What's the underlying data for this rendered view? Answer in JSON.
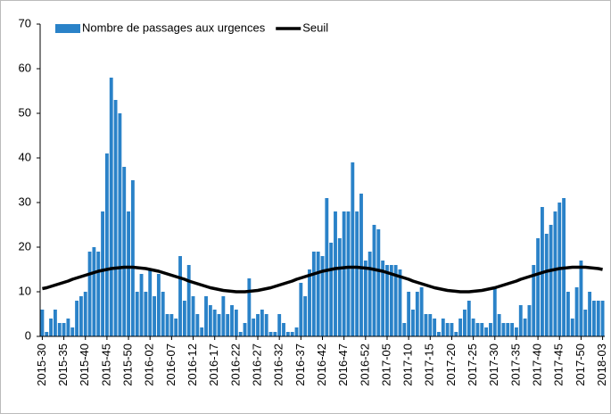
{
  "chart_data": {
    "type": "bar",
    "categories": [
      "2015-30",
      null,
      null,
      null,
      null,
      "2015-35",
      null,
      null,
      null,
      null,
      "2015-40",
      null,
      null,
      null,
      null,
      "2015-45",
      null,
      null,
      null,
      null,
      "2015-50",
      null,
      null,
      null,
      null,
      "2016-02",
      null,
      null,
      null,
      null,
      "2016-07",
      null,
      null,
      null,
      null,
      "2016-12",
      null,
      null,
      null,
      null,
      "2016-17",
      null,
      null,
      null,
      null,
      "2016-22",
      null,
      null,
      null,
      null,
      "2016-27",
      null,
      null,
      null,
      null,
      "2016-32",
      null,
      null,
      null,
      null,
      "2016-37",
      null,
      null,
      null,
      null,
      "2016-42",
      null,
      null,
      null,
      null,
      "2016-47",
      null,
      null,
      null,
      null,
      "2016-52",
      null,
      null,
      null,
      null,
      "2017-05",
      null,
      null,
      null,
      null,
      "2017-10",
      null,
      null,
      null,
      null,
      "2017-15",
      null,
      null,
      null,
      null,
      "2017-20",
      null,
      null,
      null,
      null,
      "2017-25",
      null,
      null,
      null,
      null,
      "2017-30",
      null,
      null,
      null,
      null,
      "2017-35",
      null,
      null,
      null,
      null,
      "2017-40",
      null,
      null,
      null,
      null,
      "2017-45",
      null,
      null,
      null,
      null,
      "2017-50",
      null,
      null,
      null,
      null,
      "2018-03"
    ],
    "series": [
      {
        "name": "Nombre de passages aux urgences",
        "type": "bar",
        "color": "#2a82c8",
        "values": [
          6,
          1,
          4,
          6,
          3,
          3,
          4,
          2,
          8,
          9,
          10,
          19,
          20,
          19,
          28,
          41,
          58,
          53,
          50,
          38,
          28,
          35,
          10,
          14,
          10,
          15,
          9,
          14,
          10,
          5,
          5,
          4,
          18,
          8,
          16,
          9,
          5,
          2,
          9,
          7,
          6,
          5,
          9,
          5,
          7,
          6,
          1,
          3,
          13,
          4,
          5,
          6,
          5,
          1,
          1,
          5,
          3,
          1,
          1,
          2,
          12,
          9,
          15,
          19,
          19,
          18,
          31,
          21,
          28,
          22,
          28,
          28,
          39,
          28,
          32,
          17,
          19,
          25,
          24,
          17,
          16,
          16,
          16,
          15,
          3,
          10,
          6,
          10,
          11,
          5,
          5,
          4,
          1,
          4,
          3,
          3,
          1,
          4,
          6,
          8,
          4,
          3,
          3,
          2,
          3,
          11,
          5,
          3,
          3,
          3,
          2,
          7,
          4,
          7,
          16,
          22,
          29,
          23,
          25,
          28,
          30,
          31,
          10,
          4,
          11,
          17,
          6,
          10,
          8,
          8,
          8
        ]
      },
      {
        "name": "Seuil",
        "type": "line",
        "color": "#000000",
        "values": [
          10.7,
          10.9,
          11.2,
          11.5,
          11.8,
          12.1,
          12.4,
          12.8,
          13.1,
          13.4,
          13.7,
          14.0,
          14.3,
          14.6,
          14.8,
          15.0,
          15.2,
          15.3,
          15.4,
          15.5,
          15.5,
          15.5,
          15.4,
          15.3,
          15.2,
          15.0,
          14.8,
          14.6,
          14.3,
          14.0,
          13.7,
          13.4,
          13.1,
          12.8,
          12.4,
          12.1,
          11.8,
          11.5,
          11.2,
          10.9,
          10.7,
          10.5,
          10.3,
          10.2,
          10.1,
          10.0,
          10.0,
          10.0,
          10.1,
          10.2,
          10.3,
          10.5,
          10.7,
          10.9,
          11.2,
          11.5,
          11.8,
          12.1,
          12.4,
          12.8,
          13.1,
          13.4,
          13.7,
          14.0,
          14.3,
          14.6,
          14.8,
          15.0,
          15.2,
          15.3,
          15.4,
          15.5,
          15.5,
          15.5,
          15.4,
          15.3,
          15.2,
          15.0,
          14.8,
          14.6,
          14.3,
          14.0,
          13.7,
          13.4,
          13.1,
          12.8,
          12.4,
          12.1,
          11.8,
          11.5,
          11.2,
          10.9,
          10.7,
          10.5,
          10.3,
          10.2,
          10.1,
          10.0,
          10.0,
          10.0,
          10.1,
          10.2,
          10.3,
          10.5,
          10.7,
          10.9,
          11.2,
          11.5,
          11.8,
          12.1,
          12.4,
          12.8,
          13.1,
          13.4,
          13.7,
          14.0,
          14.3,
          14.6,
          14.8,
          15.0,
          15.2,
          15.3,
          15.4,
          15.5,
          15.5,
          15.5,
          15.5,
          15.4,
          15.3,
          15.2,
          15.0
        ]
      }
    ],
    "ylim": [
      0,
      70
    ],
    "yticks": [
      0,
      10,
      20,
      30,
      40,
      50,
      60,
      70
    ],
    "grid": false,
    "legend": "top"
  }
}
